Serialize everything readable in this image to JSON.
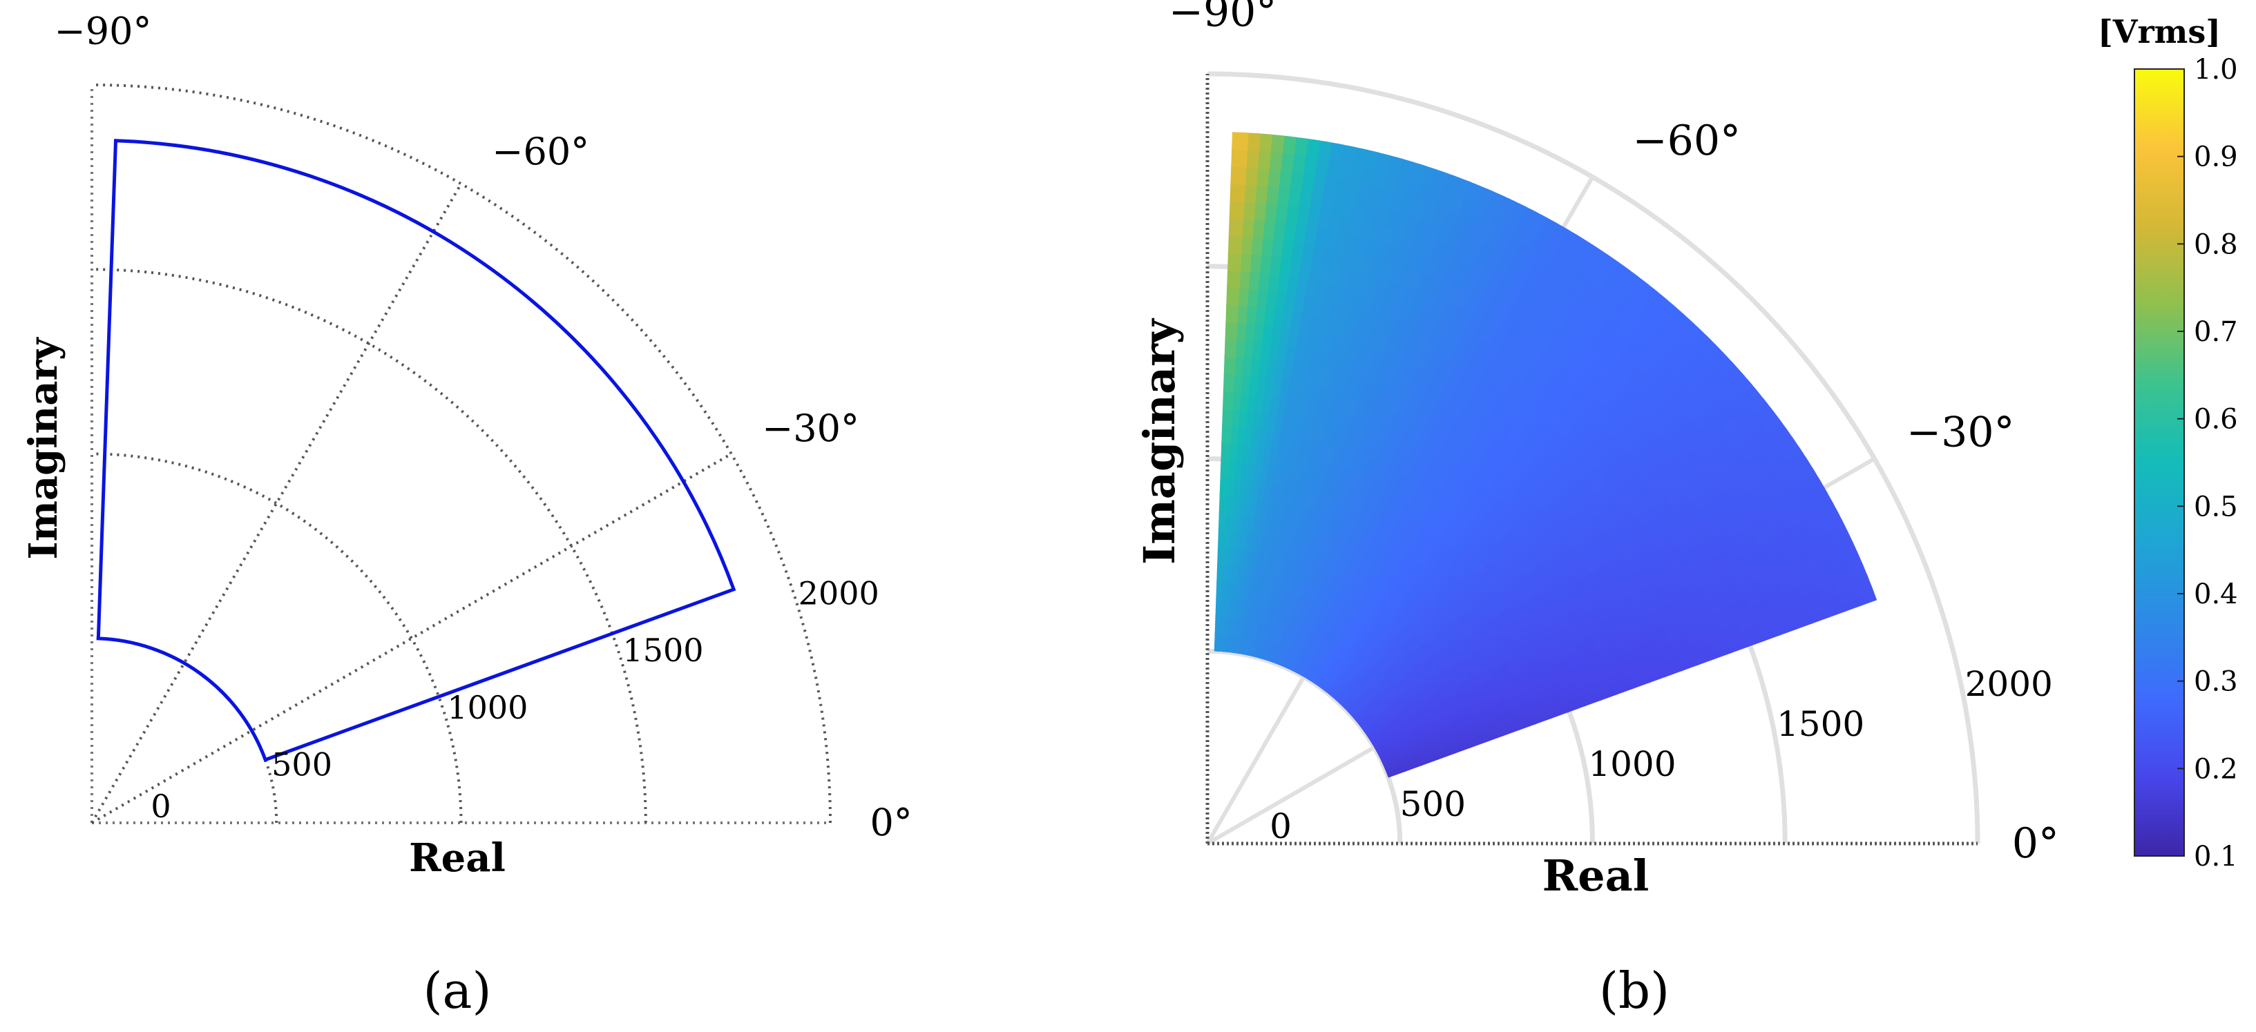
{
  "chart_data": [
    {
      "panel": "a",
      "type": "polar-region",
      "panel_label": "(a)",
      "xlabel": "Real",
      "ylabel": "Imaginary",
      "radial_ticks": [
        0,
        500,
        1000,
        1500,
        2000
      ],
      "radial_tick_labels": [
        "0",
        "500",
        "1000",
        "1500",
        "2000"
      ],
      "rlim": [
        0,
        2000
      ],
      "angle_ticks_deg": [
        0,
        -30,
        -60,
        -90
      ],
      "angle_tick_labels": [
        "0°",
        "−30°",
        "−60°",
        "−90°"
      ],
      "grid": true,
      "region": {
        "color": "#0a14e0",
        "r_inner": 500,
        "r_outer": 1850,
        "theta_start_deg": -20,
        "theta_end_deg": -88
      }
    },
    {
      "panel": "b",
      "type": "heatmap",
      "panel_label": "(b)",
      "xlabel": "Real",
      "ylabel": "Imaginary",
      "radial_ticks": [
        0,
        500,
        1000,
        1500,
        2000
      ],
      "radial_tick_labels": [
        "0",
        "500",
        "1000",
        "1500",
        "2000"
      ],
      "rlim": [
        0,
        2000
      ],
      "angle_ticks_deg": [
        0,
        -30,
        -60,
        -90
      ],
      "angle_tick_labels": [
        "0°",
        "−30°",
        "−60°",
        "−90°"
      ],
      "grid": true,
      "region": {
        "r_inner": 500,
        "r_outer": 1850,
        "theta_start_deg": -20,
        "theta_end_deg": -88
      },
      "value_samples": [
        {
          "r": 500,
          "theta_deg": -20,
          "value": 0.15
        },
        {
          "r": 1850,
          "theta_deg": -20,
          "value": 0.22
        },
        {
          "r": 1850,
          "theta_deg": -60,
          "value": 0.3
        },
        {
          "r": 1850,
          "theta_deg": -80,
          "value": 0.45
        },
        {
          "r": 1850,
          "theta_deg": -88,
          "value": 0.9
        },
        {
          "r": 500,
          "theta_deg": -88,
          "value": 0.4
        }
      ],
      "colorbar": {
        "unit": "[Vrms]",
        "min": 0.1,
        "max": 1.0,
        "ticks": [
          0.1,
          0.2,
          0.3,
          0.4,
          0.5,
          0.6,
          0.7,
          0.8,
          0.9,
          1.0
        ],
        "tick_labels": [
          "0.1",
          "0.2",
          "0.3",
          "0.4",
          "0.5",
          "0.6",
          "0.7",
          "0.8",
          "0.9",
          "1.0"
        ],
        "colormap": "parula",
        "stops": [
          "#3e26a8",
          "#4746eb",
          "#3e6bfd",
          "#2d8ae6",
          "#1fa5d4",
          "#14bcb9",
          "#3dc38e",
          "#8fc04f",
          "#d4b836",
          "#fbc43a",
          "#f9fb0e"
        ]
      }
    }
  ]
}
